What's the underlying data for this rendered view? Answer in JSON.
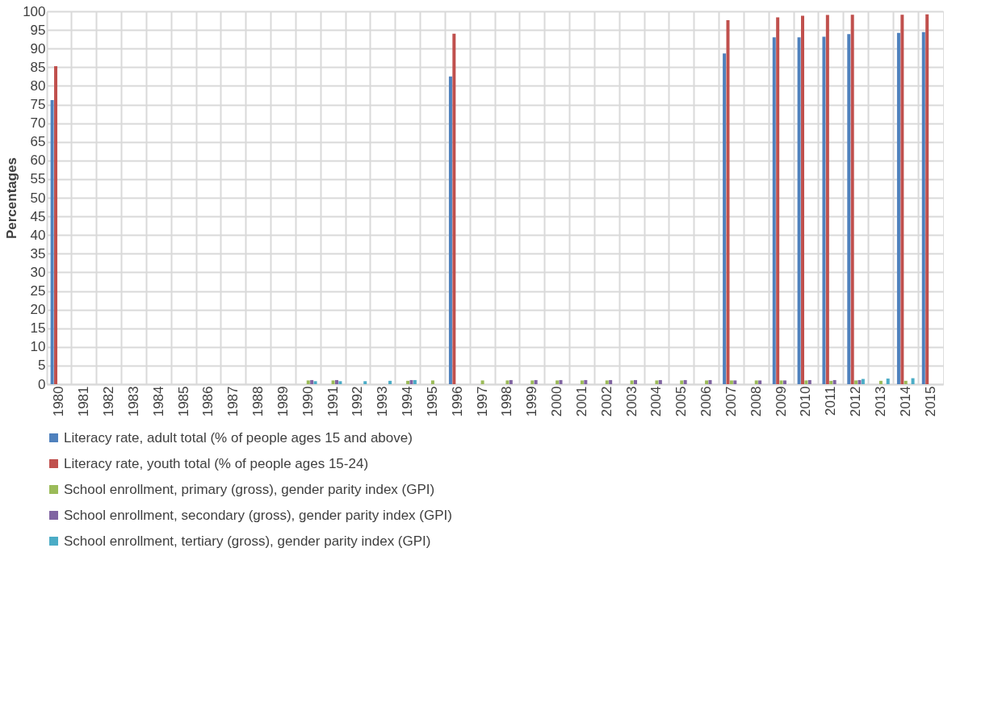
{
  "chart_data": {
    "type": "bar",
    "ylabel": "Percentages",
    "categories": [
      "1980",
      "1981",
      "1982",
      "1983",
      "1984",
      "1985",
      "1986",
      "1987",
      "1988",
      "1989",
      "1990",
      "1991",
      "1992",
      "1993",
      "1994",
      "1995",
      "1996",
      "1997",
      "1998",
      "1999",
      "2000",
      "2001",
      "2002",
      "2003",
      "2004",
      "2005",
      "2006",
      "2007",
      "2008",
      "2009",
      "2010",
      "2011",
      "2012",
      "2013",
      "2014",
      "2015"
    ],
    "series": [
      {
        "name": "Literacy rate, adult total (% of people ages 15 and above)",
        "color": "#4f81bd",
        "values": [
          76.2,
          null,
          null,
          null,
          null,
          null,
          null,
          null,
          null,
          null,
          null,
          null,
          null,
          null,
          null,
          null,
          82.5,
          null,
          null,
          null,
          null,
          null,
          null,
          null,
          null,
          null,
          null,
          88.7,
          null,
          93.0,
          93.0,
          93.2,
          93.9,
          null,
          94.2,
          94.4
        ]
      },
      {
        "name": "Literacy rate, youth total (% of people ages 15-24)",
        "color": "#c0504d",
        "values": [
          85.3,
          null,
          null,
          null,
          null,
          null,
          null,
          null,
          null,
          null,
          null,
          null,
          null,
          null,
          null,
          null,
          94.0,
          null,
          null,
          null,
          null,
          null,
          null,
          null,
          null,
          null,
          null,
          97.6,
          null,
          98.4,
          98.8,
          99.0,
          99.1,
          null,
          99.1,
          99.2
        ]
      },
      {
        "name": "School enrollment, primary (gross), gender parity index (GPI)",
        "color": "#9bbb59",
        "values": [
          null,
          null,
          null,
          null,
          null,
          null,
          null,
          null,
          null,
          null,
          1.0,
          1.0,
          null,
          null,
          0.9,
          1.0,
          null,
          1.0,
          1.0,
          1.0,
          1.0,
          1.0,
          1.0,
          1.0,
          1.0,
          1.0,
          1.0,
          1.0,
          1.0,
          1.0,
          1.0,
          0.9,
          1.0,
          0.9,
          0.9,
          null
        ]
      },
      {
        "name": "School enrollment, secondary (gross), gender parity index (GPI)",
        "color": "#8064a2",
        "values": [
          null,
          null,
          null,
          null,
          null,
          null,
          null,
          null,
          null,
          null,
          1.1,
          1.1,
          null,
          null,
          1.1,
          null,
          null,
          null,
          1.1,
          1.1,
          1.1,
          1.1,
          1.1,
          1.1,
          1.1,
          1.1,
          1.1,
          1.0,
          1.0,
          1.0,
          1.1,
          1.1,
          1.1,
          null,
          null,
          null
        ]
      },
      {
        "name": "School enrollment, tertiary (gross), gender parity index (GPI)",
        "color": "#4bacc6",
        "values": [
          null,
          null,
          null,
          null,
          null,
          null,
          null,
          null,
          null,
          null,
          0.8,
          0.8,
          0.8,
          0.9,
          1.1,
          null,
          null,
          null,
          null,
          null,
          null,
          null,
          null,
          null,
          null,
          null,
          null,
          null,
          null,
          null,
          null,
          null,
          1.4,
          1.5,
          1.6,
          null
        ]
      }
    ],
    "ylim": [
      0,
      100
    ],
    "yticks": [
      0,
      5,
      10,
      15,
      20,
      25,
      30,
      35,
      40,
      45,
      50,
      55,
      60,
      65,
      70,
      75,
      80,
      85,
      90,
      95,
      100
    ],
    "grid": true,
    "legend": "bottom"
  }
}
